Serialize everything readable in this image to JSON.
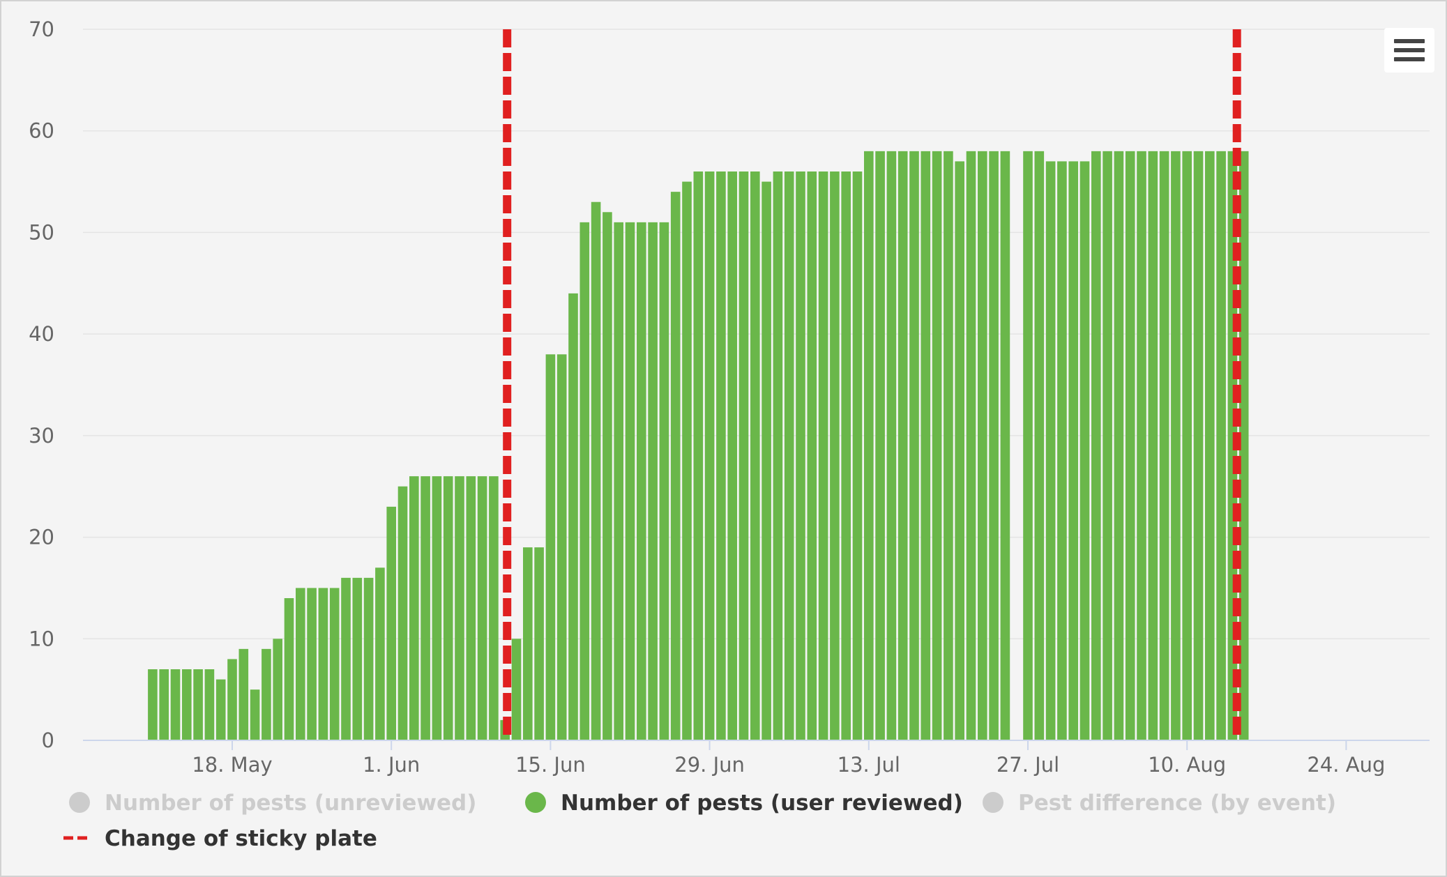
{
  "chart_data": {
    "type": "bar",
    "title": "",
    "xlabel": "",
    "ylabel": "",
    "ylim": [
      0,
      70
    ],
    "y_ticks": [
      0,
      10,
      20,
      30,
      40,
      50,
      60,
      70
    ],
    "x_axis": {
      "type": "date",
      "range": [
        "2020-05-06",
        "2020-08-29"
      ],
      "ticks": [
        {
          "date": "2020-05-18",
          "label": "18. May"
        },
        {
          "date": "2020-06-01",
          "label": "1. Jun"
        },
        {
          "date": "2020-06-15",
          "label": "15. Jun"
        },
        {
          "date": "2020-06-29",
          "label": "29. Jun"
        },
        {
          "date": "2020-07-13",
          "label": "13. Jul"
        },
        {
          "date": "2020-07-27",
          "label": "27. Jul"
        },
        {
          "date": "2020-08-10",
          "label": "10. Aug"
        },
        {
          "date": "2020-08-24",
          "label": "24. Aug"
        }
      ]
    },
    "grid": true,
    "legend_position": "bottom",
    "series": [
      {
        "name": "Number of pests (unreviewed)",
        "color": "#cccccc",
        "visible": false,
        "x": [],
        "values": []
      },
      {
        "name": "Number of pests (user reviewed)",
        "color": "#6ab74a",
        "visible": true,
        "x": [
          "2020-05-11",
          "2020-05-12",
          "2020-05-13",
          "2020-05-14",
          "2020-05-15",
          "2020-05-16",
          "2020-05-17",
          "2020-05-18",
          "2020-05-19",
          "2020-05-20",
          "2020-05-21",
          "2020-05-22",
          "2020-05-23",
          "2020-05-24",
          "2020-05-25",
          "2020-05-26",
          "2020-05-27",
          "2020-05-28",
          "2020-05-29",
          "2020-05-30",
          "2020-05-31",
          "2020-06-01",
          "2020-06-02",
          "2020-06-03",
          "2020-06-04",
          "2020-06-05",
          "2020-06-06",
          "2020-06-07",
          "2020-06-08",
          "2020-06-09",
          "2020-06-10",
          "2020-06-11",
          "2020-06-12",
          "2020-06-13",
          "2020-06-14",
          "2020-06-15",
          "2020-06-16",
          "2020-06-17",
          "2020-06-18",
          "2020-06-19",
          "2020-06-20",
          "2020-06-21",
          "2020-06-22",
          "2020-06-23",
          "2020-06-24",
          "2020-06-25",
          "2020-06-26",
          "2020-06-27",
          "2020-06-28",
          "2020-06-29",
          "2020-06-30",
          "2020-07-01",
          "2020-07-02",
          "2020-07-03",
          "2020-07-04",
          "2020-07-05",
          "2020-07-06",
          "2020-07-07",
          "2020-07-08",
          "2020-07-09",
          "2020-07-10",
          "2020-07-11",
          "2020-07-12",
          "2020-07-13",
          "2020-07-14",
          "2020-07-15",
          "2020-07-16",
          "2020-07-17",
          "2020-07-18",
          "2020-07-19",
          "2020-07-20",
          "2020-07-21",
          "2020-07-22",
          "2020-07-23",
          "2020-07-24",
          "2020-07-25",
          "2020-07-27",
          "2020-07-28",
          "2020-07-29",
          "2020-07-30",
          "2020-07-31",
          "2020-08-01",
          "2020-08-02",
          "2020-08-03",
          "2020-08-04",
          "2020-08-05",
          "2020-08-06",
          "2020-08-07",
          "2020-08-08",
          "2020-08-09",
          "2020-08-10",
          "2020-08-11",
          "2020-08-12",
          "2020-08-13",
          "2020-08-14",
          "2020-08-15"
        ],
        "values": [
          7,
          7,
          7,
          7,
          7,
          7,
          6,
          8,
          9,
          5,
          9,
          10,
          14,
          15,
          15,
          15,
          15,
          16,
          16,
          16,
          17,
          23,
          25,
          26,
          26,
          26,
          26,
          26,
          26,
          26,
          26,
          2,
          10,
          19,
          19,
          38,
          38,
          44,
          51,
          53,
          52,
          51,
          51,
          51,
          51,
          51,
          54,
          55,
          56,
          56,
          56,
          56,
          56,
          56,
          55,
          56,
          56,
          56,
          56,
          56,
          56,
          56,
          56,
          58,
          58,
          58,
          58,
          58,
          58,
          58,
          58,
          57,
          58,
          58,
          58,
          58,
          58,
          58,
          57,
          57,
          57,
          57,
          58,
          58,
          58,
          58,
          58,
          58,
          58,
          58,
          58,
          58,
          58,
          58,
          58,
          58
        ]
      },
      {
        "name": "Pest difference (by event)",
        "color": "#cccccc",
        "visible": false,
        "x": [],
        "values": []
      }
    ],
    "events": {
      "name": "Change of sticky plate",
      "color": "#e02020",
      "dates": [
        "2020-06-11",
        "2020-08-15"
      ]
    }
  },
  "menu": {
    "icon": "hamburger-menu-icon"
  }
}
